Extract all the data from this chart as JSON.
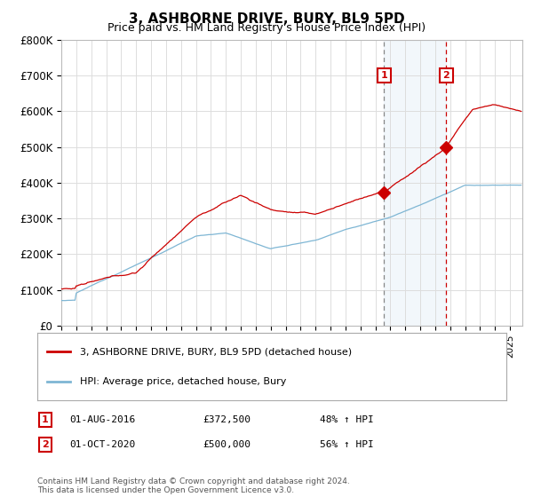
{
  "title": "3, ASHBORNE DRIVE, BURY, BL9 5PD",
  "subtitle": "Price paid vs. HM Land Registry's House Price Index (HPI)",
  "ylim": [
    0,
    800000
  ],
  "xlim_start": 1995.0,
  "xlim_end": 2025.83,
  "sale1_date": 2016.583,
  "sale1_price": 372500,
  "sale2_date": 2020.75,
  "sale2_price": 500000,
  "sale1_info": "01-AUG-2016",
  "sale1_price_str": "£372,500",
  "sale1_pct": "48% ↑ HPI",
  "sale2_info": "01-OCT-2020",
  "sale2_price_str": "£500,000",
  "sale2_pct": "56% ↑ HPI",
  "line_color_property": "#cc0000",
  "line_color_hpi": "#7eb6d4",
  "shade_color": "#dce9f5",
  "vline1_color": "#888888",
  "vline2_color": "#cc0000",
  "legend_label_property": "3, ASHBORNE DRIVE, BURY, BL9 5PD (detached house)",
  "legend_label_hpi": "HPI: Average price, detached house, Bury",
  "footnote": "Contains HM Land Registry data © Crown copyright and database right 2024.\nThis data is licensed under the Open Government Licence v3.0.",
  "background_color": "#ffffff",
  "grid_color": "#dddddd",
  "yticks": [
    0,
    100000,
    200000,
    300000,
    400000,
    500000,
    600000,
    700000,
    800000
  ],
  "ytick_labels": [
    "£0",
    "£100K",
    "£200K",
    "£300K",
    "£400K",
    "£500K",
    "£600K",
    "£700K",
    "£800K"
  ]
}
